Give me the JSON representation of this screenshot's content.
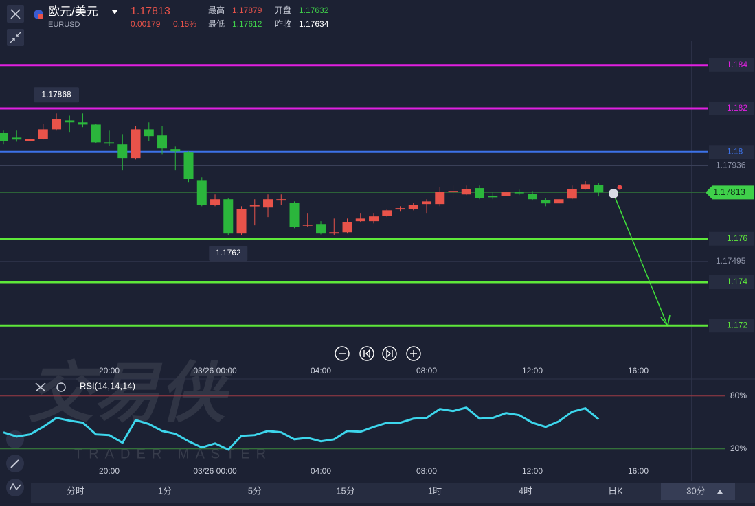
{
  "header": {
    "name": "欧元/美元",
    "symbol": "EURUSD",
    "price": "1.17813",
    "change": "0.00179",
    "change_pct": "0.15%",
    "stats": [
      {
        "label": "最高",
        "value": "1.17879"
      },
      {
        "label": "开盘",
        "value": "1.17632"
      },
      {
        "label": "最低",
        "value": "1.17612"
      },
      {
        "label": "昨收",
        "value": "1.17634"
      }
    ]
  },
  "watermark": {
    "title": "交易侠",
    "subtitle": "TRADER MASTER"
  },
  "tabs": [
    "分时",
    "1分",
    "5分",
    "15分",
    "1时",
    "4时",
    "日K",
    "30分"
  ],
  "chart_data": [
    {
      "type": "candlestick",
      "categories": [
        null,
        null,
        null,
        null,
        null,
        null,
        null,
        null,
        "20:00",
        null,
        null,
        null,
        null,
        null,
        null,
        null,
        "03/26 00:00",
        null,
        null,
        null,
        null,
        null,
        null,
        null,
        "04:00",
        null,
        null,
        null,
        null,
        null,
        null,
        null,
        "08:00",
        null,
        null,
        null,
        null,
        null,
        null,
        null,
        "12:00",
        null,
        null,
        null,
        null,
        null,
        null,
        null,
        "16:00",
        null,
        null,
        null,
        null
      ],
      "open": [
        1.18088,
        1.18066,
        1.18051,
        1.1806,
        1.18104,
        1.18145,
        1.18136,
        1.18126,
        1.18044,
        1.18035,
        1.17972,
        1.18104,
        1.18076,
        1.18013,
        1.17997,
        1.1787,
        1.17757,
        1.17782,
        1.17624,
        1.1775,
        1.17744,
        1.17776,
        1.17766,
        1.17662,
        1.17668,
        1.17624,
        1.1763,
        1.17681,
        1.17681,
        1.17706,
        1.17735,
        1.17738,
        1.1776,
        1.1776,
        1.17814,
        1.17804,
        1.17833,
        1.17798,
        1.17798,
        1.17814,
        1.17807,
        1.17779,
        1.17763,
        1.17785,
        1.17829,
        1.17848,
        null,
        null,
        null,
        null,
        null,
        null,
        null
      ],
      "high": [
        1.18098,
        1.18098,
        1.18079,
        1.1813,
        1.18177,
        1.18167,
        1.18177,
        1.1813,
        1.18098,
        1.18082,
        1.1812,
        1.18136,
        1.1812,
        1.18025,
        1.18003,
        1.17883,
        1.17804,
        1.17788,
        1.1775,
        1.17782,
        1.17804,
        1.17804,
        1.17772,
        1.17719,
        1.17681,
        1.17693,
        1.17693,
        1.17719,
        1.17719,
        1.17738,
        1.1775,
        1.17766,
        1.17782,
        1.17839,
        1.17845,
        1.17845,
        1.17845,
        1.17814,
        1.17823,
        1.17826,
        1.1782,
        1.17788,
        1.17788,
        1.17845,
        1.17868,
        1.17858,
        null,
        null,
        null,
        null,
        null,
        null,
        null
      ],
      "low": [
        1.18035,
        1.18047,
        1.18044,
        1.18057,
        1.18098,
        1.18092,
        1.18114,
        1.18041,
        1.18028,
        1.17915,
        1.17965,
        1.18051,
        1.17987,
        1.17915,
        1.17861,
        1.1775,
        1.1775,
        1.17618,
        1.17618,
        1.17662,
        1.177,
        1.17757,
        1.17649,
        1.17656,
        1.1762,
        1.17618,
        1.17624,
        1.17675,
        1.17671,
        1.177,
        1.17725,
        1.17731,
        1.17719,
        1.1775,
        1.17782,
        1.17801,
        1.17782,
        1.17782,
        1.17795,
        1.17801,
        1.17776,
        1.1775,
        1.1776,
        1.17782,
        1.17826,
        1.17795,
        null,
        null,
        null,
        null,
        null,
        null,
        null
      ],
      "close": [
        1.18051,
        1.18057,
        1.1806,
        1.18104,
        1.18152,
        1.18136,
        1.18126,
        1.18044,
        1.18038,
        1.17972,
        1.18104,
        1.18073,
        1.18016,
        1.18003,
        1.17877,
        1.17757,
        1.17782,
        1.17624,
        1.17738,
        1.17754,
        1.17782,
        1.17782,
        1.17656,
        1.17665,
        1.17624,
        1.1763,
        1.17678,
        1.17693,
        1.17703,
        1.17731,
        1.17741,
        1.17757,
        1.17772,
        1.17817,
        1.1782,
        1.17829,
        1.17788,
        1.17791,
        1.17814,
        1.1781,
        1.17782,
        1.17763,
        1.17782,
        1.17829,
        1.17851,
        1.17813,
        null,
        null,
        null,
        null,
        null,
        null,
        null
      ],
      "up_color": "#e8534a",
      "down_color": "#2bb63c",
      "ylim": [
        1.1703,
        1.1851
      ],
      "horizontal_lines": [
        {
          "value": 1.184,
          "color": "#e020e0"
        },
        {
          "value": 1.182,
          "color": "#e020e0"
        },
        {
          "value": 1.18,
          "color": "#3d72e8"
        },
        {
          "value": 1.176,
          "color": "#5ee83a"
        },
        {
          "value": 1.174,
          "color": "#5ee83a"
        },
        {
          "value": 1.172,
          "color": "#5ee83a"
        }
      ],
      "last_price": 1.17813,
      "price_labels": [
        1.17936,
        1.17495
      ],
      "max_label": 1.17868,
      "min_label": 1.1762
    },
    {
      "type": "line",
      "categories": [
        null,
        null,
        null,
        null,
        null,
        null,
        null,
        null,
        "20:00",
        null,
        null,
        null,
        null,
        null,
        null,
        null,
        "03/26 00:00",
        null,
        null,
        null,
        null,
        null,
        null,
        null,
        "04:00",
        null,
        null,
        null,
        null,
        null,
        null,
        null,
        "08:00",
        null,
        null,
        null,
        null,
        null,
        null,
        null,
        "12:00",
        null,
        null,
        null,
        null,
        null,
        null,
        null,
        "16:00",
        null,
        null,
        null,
        null
      ],
      "series": [
        {
          "name": "RSI(14,14,14)",
          "color": "#3dd6ec",
          "values": [
            38.7,
            34,
            36.4,
            44.9,
            55.1,
            52,
            49.6,
            36.4,
            35.6,
            27,
            52.7,
            48.1,
            40.3,
            37.1,
            28.6,
            21.6,
            26.2,
            19.2,
            34.8,
            35.6,
            40.3,
            38.7,
            30.9,
            32.5,
            28.6,
            30.9,
            40.3,
            39.5,
            44.9,
            49.6,
            49.6,
            54.3,
            55.1,
            65.2,
            62.9,
            66.8,
            54.3,
            55.1,
            60.5,
            58.2,
            49.6,
            44.9,
            51.2,
            62.1,
            66,
            53.5,
            null,
            null,
            null,
            null,
            null,
            null,
            null
          ]
        }
      ],
      "ylim": [
        -16,
        93
      ],
      "yticks": [
        {
          "value": 80,
          "label": "80%"
        },
        {
          "value": 20,
          "label": "20%"
        }
      ],
      "ytick_colors": [
        "#9c3a44",
        "#3d8a3d"
      ]
    }
  ]
}
